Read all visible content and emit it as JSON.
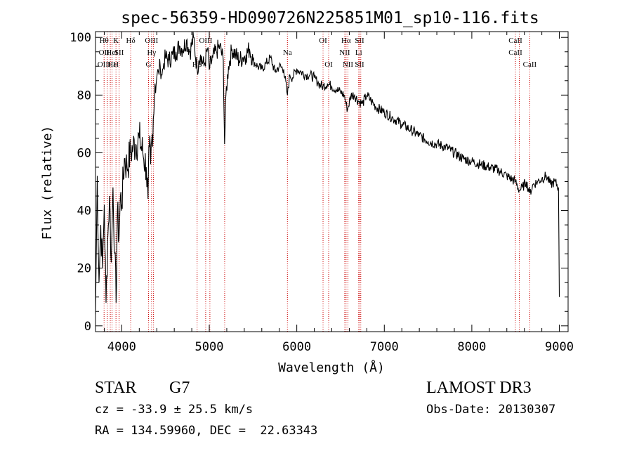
{
  "chart_data": {
    "type": "line",
    "title": "spec-56359-HD090726N225851M01_sp10-116.fits",
    "xlabel": "Wavelength (Å)",
    "ylabel": "Flux (relative)",
    "xlim": [
      3700,
      9100
    ],
    "ylim": [
      -2,
      102
    ],
    "xticks": [
      4000,
      5000,
      6000,
      7000,
      8000,
      9000
    ],
    "yticks": [
      0,
      20,
      40,
      60,
      80,
      100
    ],
    "grid": false,
    "legend": "none",
    "line_color": "#000000",
    "marker_color": "#cc0000",
    "series": [
      {
        "x": [
          3700,
          3720,
          3740,
          3760,
          3780,
          3800,
          3820,
          3840,
          3860,
          3880,
          3900,
          3920,
          3935,
          3950,
          3968,
          3985,
          4000,
          4030,
          4060,
          4101,
          4130,
          4160,
          4200,
          4240,
          4280,
          4300,
          4315,
          4330,
          4360,
          4380,
          4400,
          4420,
          4440,
          4460,
          4480,
          4500,
          4540,
          4580,
          4620,
          4660,
          4700,
          4740,
          4780,
          4820,
          4861,
          4880,
          4900,
          4940,
          4980,
          5000,
          5040,
          5080,
          5120,
          5160,
          5175,
          5190,
          5220,
          5260,
          5300,
          5340,
          5380,
          5420,
          5460,
          5500,
          5550,
          5600,
          5650,
          5700,
          5750,
          5800,
          5850,
          5893,
          5920,
          5950,
          6000,
          6050,
          6100,
          6150,
          6200,
          6250,
          6300,
          6350,
          6400,
          6450,
          6500,
          6540,
          6563,
          6580,
          6620,
          6660,
          6700,
          6750,
          6800,
          6850,
          6900,
          7000,
          7100,
          7200,
          7300,
          7400,
          7500,
          7600,
          7700,
          7800,
          7900,
          8000,
          8100,
          8200,
          8300,
          8400,
          8498,
          8542,
          8580,
          8620,
          8662,
          8700,
          8750,
          8800,
          8850,
          8900,
          8950,
          8990,
          9000
        ],
        "y": [
          4,
          52,
          15,
          35,
          20,
          42,
          8,
          30,
          45,
          22,
          48,
          25,
          8,
          40,
          30,
          45,
          42,
          58,
          55,
          60,
          62,
          63,
          65,
          60,
          55,
          44,
          62,
          56,
          72,
          84,
          86,
          88,
          90,
          87,
          91,
          93,
          92,
          94,
          95,
          97,
          96,
          99,
          95,
          100,
          89,
          92,
          94,
          90,
          96,
          89,
          93,
          95,
          97,
          92,
          63,
          80,
          90,
          96,
          94,
          92,
          93,
          94,
          96,
          92,
          90,
          89,
          91,
          93,
          88,
          90,
          89,
          80,
          87,
          86,
          89,
          88,
          87,
          87,
          86,
          84,
          83,
          84,
          83,
          82,
          81,
          80,
          77,
          75,
          80,
          80,
          78,
          77,
          80,
          78,
          76,
          74,
          72,
          70,
          68,
          66,
          64,
          63,
          62,
          60,
          58,
          57,
          56,
          55,
          54,
          52,
          50,
          47,
          48,
          50,
          46,
          49,
          50,
          51,
          52,
          49,
          50,
          48,
          10
        ]
      }
    ],
    "line_markers": [
      {
        "wave": 3798,
        "top": "Hθ",
        "mid": "OII",
        "low": "OIII"
      },
      {
        "wave": 3835,
        "top": "",
        "mid": "",
        "low": ""
      },
      {
        "wave": 3869,
        "top": "",
        "mid": "",
        "low": ""
      },
      {
        "wave": 3889,
        "top": "",
        "mid": "HeI",
        "low": "Hε"
      },
      {
        "wave": 3934,
        "top": "K",
        "mid": "",
        "low": "H"
      },
      {
        "wave": 3970,
        "top": "",
        "mid": "SII",
        "low": ""
      },
      {
        "wave": 4102,
        "top": "Hδ",
        "mid": "",
        "low": ""
      },
      {
        "wave": 4306,
        "top": "",
        "mid": "",
        "low": "G"
      },
      {
        "wave": 4341,
        "top": "OIII",
        "mid": "Hγ",
        "low": ""
      },
      {
        "wave": 4363,
        "top": "",
        "mid": "",
        "low": ""
      },
      {
        "wave": 4861,
        "top": "",
        "mid": "",
        "low": "Hβ"
      },
      {
        "wave": 4959,
        "top": "OIII",
        "mid": "",
        "low": ""
      },
      {
        "wave": 5007,
        "top": "",
        "mid": "",
        "low": ""
      },
      {
        "wave": 5176,
        "top": "",
        "mid": "",
        "low": ""
      },
      {
        "wave": 5893,
        "top": "",
        "mid": "Na",
        "low": ""
      },
      {
        "wave": 6300,
        "top": "OI",
        "mid": "",
        "low": ""
      },
      {
        "wave": 6364,
        "top": "",
        "mid": "",
        "low": "OI"
      },
      {
        "wave": 6548,
        "top": "",
        "mid": "NII",
        "low": ""
      },
      {
        "wave": 6563,
        "top": "Hα",
        "mid": "",
        "low": ""
      },
      {
        "wave": 6584,
        "top": "",
        "mid": "",
        "low": "NII"
      },
      {
        "wave": 6707,
        "top": "",
        "mid": "Li",
        "low": ""
      },
      {
        "wave": 6717,
        "top": "SII",
        "mid": "",
        "low": "SII"
      },
      {
        "wave": 6731,
        "top": "",
        "mid": "",
        "low": ""
      },
      {
        "wave": 8498,
        "top": "CaII",
        "mid": "CaII",
        "low": ""
      },
      {
        "wave": 8542,
        "top": "",
        "mid": "",
        "low": ""
      },
      {
        "wave": 8662,
        "top": "",
        "mid": "",
        "low": "CaII"
      }
    ]
  },
  "info": {
    "class_label": "STAR",
    "subclass": "G7",
    "survey": "LAMOST DR3",
    "cz": "cz = -33.9 ± 25.5 km/s",
    "obs_date": "Obs-Date: 20130307",
    "coords": "RA = 134.59960, DEC =  22.63343"
  }
}
